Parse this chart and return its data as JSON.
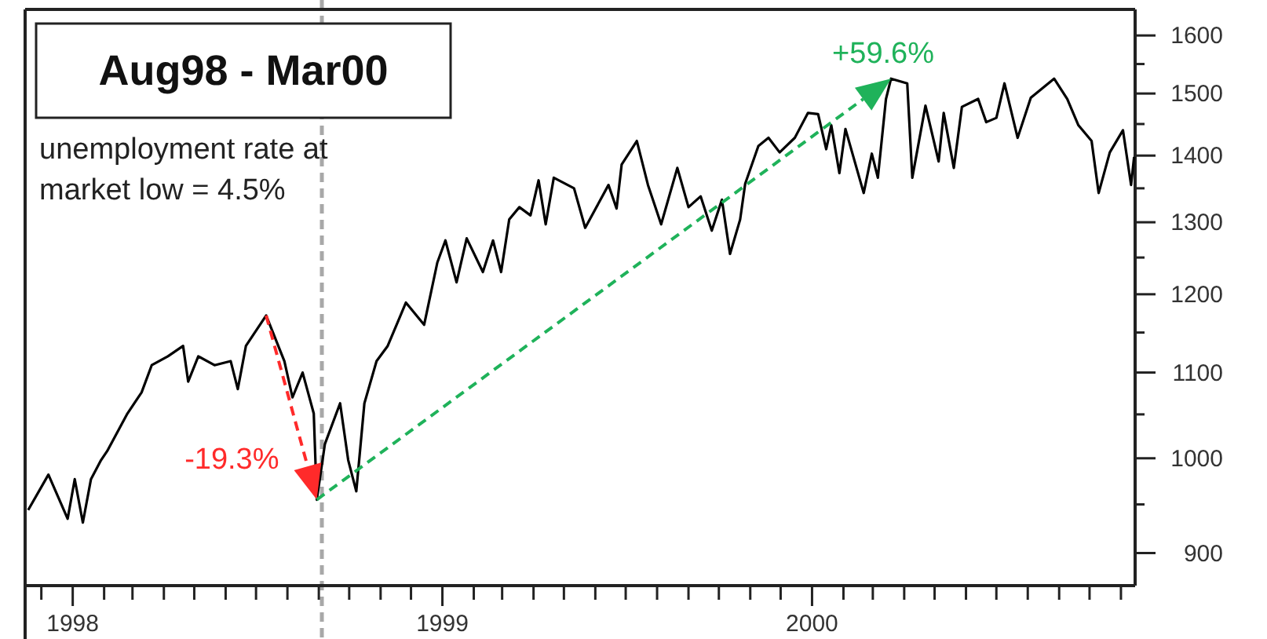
{
  "chart_data": {
    "type": "line",
    "title": "Aug98 - Mar00",
    "annotations": [
      "unemployment rate at market low = 4.5%",
      {
        "text": "-19.3%",
        "x": "1998-08-30",
        "y": 955
      },
      {
        "text": "+59.6%",
        "x": "2000-03-19",
        "y": 1525
      }
    ],
    "x": [
      "1997-11-18",
      "1997-12-08",
      "1997-12-27",
      "1998-01-03",
      "1998-01-11",
      "1998-01-19",
      "1998-01-29",
      "1998-02-04",
      "1998-02-24",
      "1998-03-10",
      "1998-03-20",
      "1998-04-05",
      "1998-04-20",
      "1998-04-25",
      "1998-05-05",
      "1998-05-21",
      "1998-06-06",
      "1998-06-13",
      "1998-06-21",
      "1998-07-11",
      "1998-07-29",
      "1998-08-06",
      "1998-08-16",
      "1998-08-27",
      "1998-08-30",
      "1998-09-07",
      "1998-09-22",
      "1998-09-30",
      "1998-10-08",
      "1998-10-16",
      "1998-10-28",
      "1998-11-08",
      "1998-11-26",
      "1998-12-14",
      "1998-12-27",
      "1999-01-04",
      "1999-01-15",
      "1999-01-25",
      "1999-02-10",
      "1999-02-20",
      "1999-02-28",
      "1999-03-08",
      "1999-03-18",
      "1999-03-29",
      "1999-04-06",
      "1999-04-13",
      "1999-04-21",
      "1999-05-11",
      "1999-05-22",
      "1999-06-14",
      "1999-06-22",
      "1999-06-27",
      "1999-07-12",
      "1999-07-23",
      "1999-08-05",
      "1999-08-21",
      "1999-09-01",
      "1999-09-13",
      "1999-09-24",
      "1999-10-04",
      "1999-10-12",
      "1999-10-22",
      "1999-10-27",
      "1999-11-09",
      "1999-11-19",
      "1999-11-30",
      "1999-12-15",
      "1999-12-28",
      "2000-01-07",
      "2000-01-15",
      "2000-01-20",
      "2000-01-28",
      "2000-02-03",
      "2000-02-21",
      "2000-02-29",
      "2000-03-06",
      "2000-03-14",
      "2000-03-19",
      "2000-04-04",
      "2000-04-09",
      "2000-04-22",
      "2000-05-05",
      "2000-05-10",
      "2000-05-20",
      "2000-05-28",
      "2000-06-13",
      "2000-06-21",
      "2000-07-01",
      "2000-07-09",
      "2000-07-22",
      "2000-08-04",
      "2000-08-27",
      "2000-09-09",
      "2000-09-20",
      "2000-10-03",
      "2000-10-10",
      "2000-10-21",
      "2000-11-03",
      "2000-11-11",
      "2000-11-14"
    ],
    "series": [
      {
        "color": "#000000",
        "values": [
          944,
          982,
          935,
          977,
          931,
          977,
          998,
          1008,
          1051,
          1076,
          1109,
          1120,
          1133,
          1089,
          1120,
          1109,
          1114,
          1080,
          1133,
          1172,
          1114,
          1070,
          1100,
          1051,
          955,
          1016,
          1063,
          998,
          964,
          1063,
          1114,
          1133,
          1189,
          1160,
          1243,
          1274,
          1216,
          1277,
          1230,
          1274,
          1230,
          1304,
          1322,
          1310,
          1362,
          1297,
          1366,
          1350,
          1292,
          1355,
          1320,
          1386,
          1423,
          1355,
          1297,
          1381,
          1322,
          1338,
          1288,
          1333,
          1255,
          1304,
          1357,
          1415,
          1428,
          1405,
          1428,
          1468,
          1466,
          1410,
          1448,
          1373,
          1442,
          1343,
          1403,
          1366,
          1491,
          1525,
          1517,
          1366,
          1480,
          1391,
          1468,
          1381,
          1478,
          1491,
          1453,
          1460,
          1517,
          1428,
          1493,
          1525,
          1491,
          1448,
          1423,
          1343,
          1405,
          1440,
          1355,
          1398
        ]
      }
    ],
    "xlim": [
      "1997-11-15",
      "2000-11-15"
    ],
    "xticks": [
      {
        "value": "1997-12-01",
        "label": null
      },
      {
        "value": "1998-01-01",
        "label": "1998"
      },
      {
        "value": "1998-02-01",
        "label": null
      },
      {
        "value": "1998-03-01",
        "label": null
      },
      {
        "value": "1998-04-01",
        "label": null
      },
      {
        "value": "1998-05-01",
        "label": null
      },
      {
        "value": "1998-06-01",
        "label": null
      },
      {
        "value": "1998-07-01",
        "label": null
      },
      {
        "value": "1998-08-01",
        "label": null
      },
      {
        "value": "1998-09-01",
        "label": null
      },
      {
        "value": "1998-10-01",
        "label": null
      },
      {
        "value": "1998-11-01",
        "label": null
      },
      {
        "value": "1998-12-01",
        "label": null
      },
      {
        "value": "1999-01-01",
        "label": "1999"
      },
      {
        "value": "1999-02-01",
        "label": null
      },
      {
        "value": "1999-03-01",
        "label": null
      },
      {
        "value": "1999-04-01",
        "label": null
      },
      {
        "value": "1999-05-01",
        "label": null
      },
      {
        "value": "1999-06-01",
        "label": null
      },
      {
        "value": "1999-07-01",
        "label": null
      },
      {
        "value": "1999-08-01",
        "label": null
      },
      {
        "value": "1999-09-01",
        "label": null
      },
      {
        "value": "1999-10-01",
        "label": null
      },
      {
        "value": "1999-11-01",
        "label": null
      },
      {
        "value": "1999-12-01",
        "label": null
      },
      {
        "value": "2000-01-01",
        "label": "2000"
      },
      {
        "value": "2000-02-01",
        "label": null
      },
      {
        "value": "2000-03-01",
        "label": null
      },
      {
        "value": "2000-04-01",
        "label": null
      },
      {
        "value": "2000-05-01",
        "label": null
      },
      {
        "value": "2000-06-01",
        "label": null
      },
      {
        "value": "2000-07-01",
        "label": null
      },
      {
        "value": "2000-08-01",
        "label": null
      },
      {
        "value": "2000-09-01",
        "label": null
      },
      {
        "value": "2000-10-01",
        "label": null
      },
      {
        "value": "2000-11-01",
        "label": null
      }
    ],
    "ylim": [
      868,
      1647
    ],
    "log": true,
    "yticks": [
      900,
      {
        "value": 950,
        "label": null
      },
      1000,
      {
        "value": 1050,
        "label": null
      },
      1100,
      {
        "value": 1150,
        "label": null
      },
      1200,
      {
        "value": 1250,
        "label": null
      },
      1300,
      {
        "value": 1350,
        "label": null
      },
      1400,
      {
        "value": 1450,
        "label": null
      },
      1500,
      {
        "value": 1550,
        "label": null
      },
      1600
    ],
    "ref_lines": [
      {
        "axis": "x",
        "value": "1998-09-04",
        "color": "#a8a8a8",
        "line_style": "dashed"
      }
    ],
    "marker": "none",
    "line_style": "solid",
    "grid": false
  }
}
